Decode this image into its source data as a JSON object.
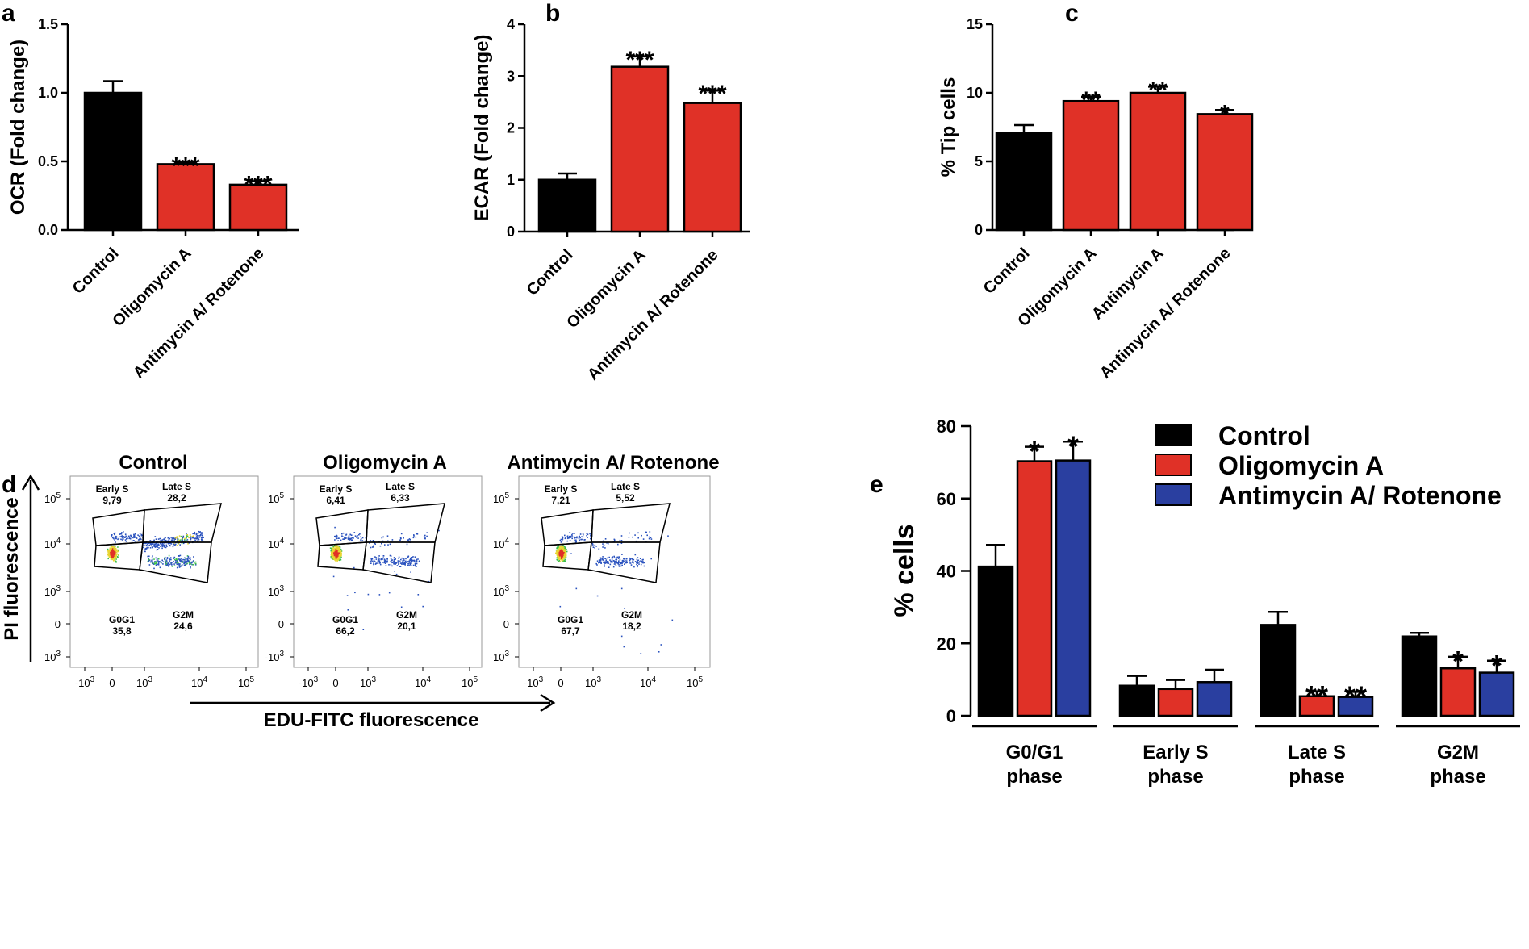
{
  "panel_letters": [
    "a",
    "b",
    "c",
    "d",
    "e"
  ],
  "colors": {
    "control": "#000000",
    "oligomycin": "#e03127",
    "antimycin": "#2a3fa0"
  },
  "chart_data": [
    {
      "panel": "a",
      "type": "bar",
      "ylabel": "OCR (Fold change)",
      "categories": [
        "Control",
        "Oligomycin A",
        "Antimycin A/ Rotenone"
      ],
      "values": [
        1.0,
        0.48,
        0.33
      ],
      "errors": [
        0.085,
        0.012,
        0.025
      ],
      "significance": [
        "",
        "***",
        "***"
      ],
      "ylim": [
        0,
        1.5
      ],
      "yticks": [
        0,
        0.5,
        1.0,
        1.5
      ],
      "ytick_labels": [
        "0.0",
        "0.5",
        "1.0",
        "1.5"
      ]
    },
    {
      "panel": "b",
      "type": "bar",
      "ylabel": "ECAR (Fold change)",
      "categories": [
        "Control",
        "Oligomycin A",
        "Antimycin A/ Rotenone"
      ],
      "values": [
        1.0,
        3.18,
        2.48
      ],
      "errors": [
        0.12,
        0.2,
        0.24
      ],
      "significance": [
        "",
        "***",
        "***"
      ],
      "ylim": [
        0,
        4
      ],
      "yticks": [
        0,
        1,
        2,
        3,
        4
      ],
      "ytick_labels": [
        "0",
        "1",
        "2",
        "3",
        "4"
      ]
    },
    {
      "panel": "c",
      "type": "bar",
      "ylabel": "% Tip cells",
      "categories": [
        "Control",
        "Oligomycin A",
        "Antimycin A",
        "Antimycin A/ Rotenone"
      ],
      "values": [
        7.1,
        9.4,
        10.0,
        8.45
      ],
      "errors": [
        0.55,
        0.3,
        0.45,
        0.3
      ],
      "significance": [
        "",
        "**",
        "**",
        "*"
      ],
      "ylim": [
        0,
        15
      ],
      "yticks": [
        0,
        5,
        10,
        15
      ],
      "ytick_labels": [
        "0",
        "5",
        "10",
        "15"
      ]
    },
    {
      "panel": "e",
      "type": "bar",
      "ylabel": "% cells",
      "categories": [
        "G0/G1 phase",
        "Early S phase",
        "Late S phase",
        "G2M phase"
      ],
      "category_lines": [
        [
          "G0/G1",
          "phase"
        ],
        [
          "Early S",
          "phase"
        ],
        [
          "Late S",
          "phase"
        ],
        [
          "G2M",
          "phase"
        ]
      ],
      "series": [
        {
          "name": "Control",
          "values": [
            41.2,
            8.3,
            25.1,
            21.9
          ],
          "errors": [
            6.0,
            2.7,
            3.6,
            1.0
          ],
          "significance": [
            "",
            "",
            "",
            ""
          ]
        },
        {
          "name": "Oligomycin A",
          "values": [
            70.3,
            7.4,
            5.4,
            13.1
          ],
          "errors": [
            4.0,
            2.5,
            1.3,
            3.2
          ],
          "significance": [
            "*",
            "",
            "**",
            "*"
          ]
        },
        {
          "name": "Antimycin A/ Rotenone",
          "values": [
            70.5,
            9.3,
            5.2,
            11.9
          ],
          "errors": [
            5.2,
            3.4,
            1.4,
            3.3
          ],
          "significance": [
            "*",
            "",
            "**",
            "*"
          ]
        }
      ],
      "ylim": [
        0,
        80
      ],
      "yticks": [
        0,
        20,
        40,
        60,
        80
      ],
      "ytick_labels": [
        "0",
        "20",
        "40",
        "60",
        "80"
      ]
    }
  ],
  "flow": {
    "y_axis_label": "PI fluorescence",
    "x_axis_label": "EDU-FITC fluorescence",
    "y_tick_labels": [
      "10^5",
      "10^4",
      "10^3",
      "0",
      "-10^3"
    ],
    "x_tick_labels": [
      "-10^3",
      "0",
      "10^3",
      "10^4",
      "10^5"
    ],
    "plots": [
      {
        "title": "Control",
        "gates": {
          "early_s": {
            "label": "Early S",
            "value": "9,79"
          },
          "late_s": {
            "label": "Late S",
            "value": "28,2"
          },
          "g0g1": {
            "label": "G0G1",
            "value": "35,8"
          },
          "g2m": {
            "label": "G2M",
            "value": "24,6"
          }
        }
      },
      {
        "title": "Oligomycin A",
        "gates": {
          "early_s": {
            "label": "Early S",
            "value": "6,41"
          },
          "late_s": {
            "label": "Late S",
            "value": "6,33"
          },
          "g0g1": {
            "label": "G0G1",
            "value": "66,2"
          },
          "g2m": {
            "label": "G2M",
            "value": "20,1"
          }
        }
      },
      {
        "title": "Antimycin A/ Rotenone",
        "gates": {
          "early_s": {
            "label": "Early S",
            "value": "7,21"
          },
          "late_s": {
            "label": "Late S",
            "value": "5,52"
          },
          "g0g1": {
            "label": "G0G1",
            "value": "67,7"
          },
          "g2m": {
            "label": "G2M",
            "value": "18,2"
          }
        }
      }
    ]
  }
}
